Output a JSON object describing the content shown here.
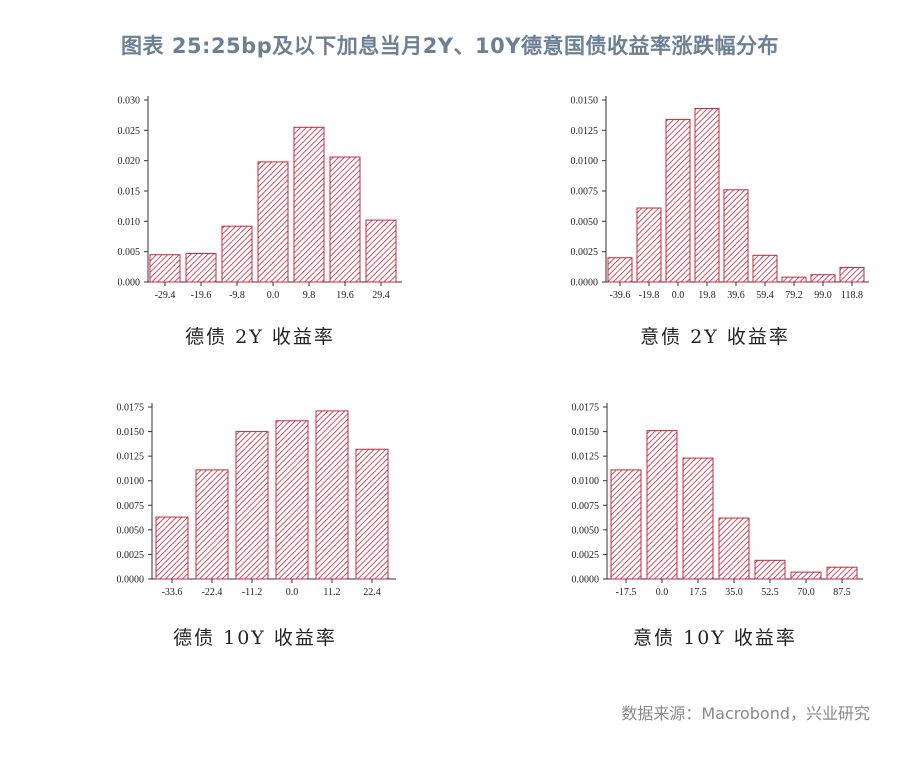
{
  "title": "图表 25:25bp及以下加息当月2Y、10Y德意国债收益率涨跌幅分布",
  "source": "数据来源：Macrobond，兴业研究",
  "colors": {
    "bar_stroke": "#c8283c",
    "hatch": "#c8283c",
    "axis": "#333333"
  },
  "chart_data": [
    {
      "type": "bar",
      "caption": "德债 2Y 收益率",
      "categories": [
        "-29.4",
        "-19.6",
        "-9.8",
        "0.0",
        "9.8",
        "19.6",
        "29.4"
      ],
      "values": [
        0.0045,
        0.0047,
        0.0092,
        0.0198,
        0.0255,
        0.0206,
        0.0102
      ],
      "ylim": [
        0,
        0.03
      ],
      "yticks": [
        "0.000",
        "0.005",
        "0.010",
        "0.015",
        "0.020",
        "0.025",
        "0.030"
      ]
    },
    {
      "type": "bar",
      "caption": "意债 2Y 收益率",
      "categories": [
        "-39.6",
        "-19.8",
        "0.0",
        "19.8",
        "39.6",
        "59.4",
        "79.2",
        "99.0",
        "118.8"
      ],
      "values": [
        0.002,
        0.0061,
        0.0134,
        0.0143,
        0.0076,
        0.0022,
        0.0004,
        0.0006,
        0.0012
      ],
      "ylim": [
        0,
        0.015
      ],
      "yticks": [
        "0.0000",
        "0.0025",
        "0.0050",
        "0.0075",
        "0.0100",
        "0.0125",
        "0.0150"
      ]
    },
    {
      "type": "bar",
      "caption": "德债 10Y 收益率",
      "categories": [
        "-33.6",
        "-22.4",
        "-11.2",
        "0.0",
        "11.2",
        "22.4"
      ],
      "values": [
        0.0063,
        0.0111,
        0.015,
        0.0161,
        0.0171,
        0.0132
      ],
      "ylim": [
        0,
        0.0175
      ],
      "yticks": [
        "0.0000",
        "0.0025",
        "0.0050",
        "0.0075",
        "0.0100",
        "0.0125",
        "0.0150",
        "0.0175"
      ]
    },
    {
      "type": "bar",
      "caption": "意债 10Y 收益率",
      "categories": [
        "-17.5",
        "0.0",
        "17.5",
        "35.0",
        "52.5",
        "70.0",
        "87.5"
      ],
      "values": [
        0.0111,
        0.0151,
        0.0123,
        0.0062,
        0.0019,
        0.0007,
        0.0012
      ],
      "ylim": [
        0,
        0.0175
      ],
      "yticks": [
        "0.0000",
        "0.0025",
        "0.0050",
        "0.0075",
        "0.0100",
        "0.0125",
        "0.0150",
        "0.0175"
      ]
    }
  ]
}
